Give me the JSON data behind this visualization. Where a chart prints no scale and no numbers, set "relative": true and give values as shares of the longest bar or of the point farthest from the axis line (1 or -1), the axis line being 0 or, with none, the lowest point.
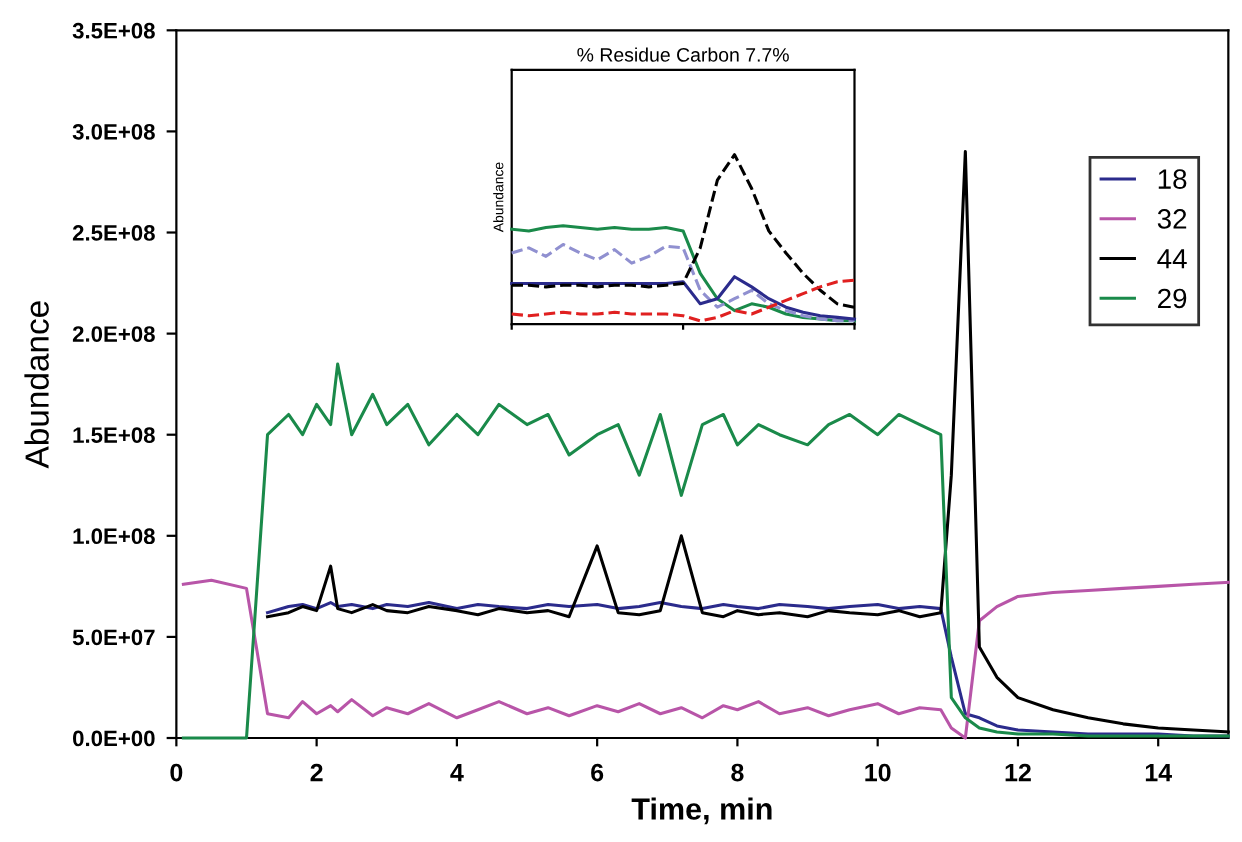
{
  "chart_data": [
    {
      "type": "line",
      "xlabel": "Time, min",
      "ylabel": "Abundance",
      "xlim": [
        0,
        15
      ],
      "xticks": [
        0,
        2,
        4,
        6,
        8,
        10,
        12,
        14
      ],
      "ylim": [
        0,
        350000000
      ],
      "yticks": [
        {
          "value": 0,
          "label": "0.0E+00"
        },
        {
          "value": 50000000,
          "label": "5.0E+07"
        },
        {
          "value": 100000000,
          "label": "1.0E+08"
        },
        {
          "value": 150000000,
          "label": "1.5E+08"
        },
        {
          "value": 200000000,
          "label": "2.0E+08"
        },
        {
          "value": 250000000,
          "label": "2.5E+08"
        },
        {
          "value": 300000000,
          "label": "3.0E+08"
        },
        {
          "value": 350000000,
          "label": "3.5E+08"
        }
      ],
      "grid": false,
      "legend": "top right",
      "marker": "none",
      "line_style": "solid",
      "x": [
        0.1,
        0.5,
        1.0,
        1.3,
        1.6,
        1.8,
        2.0,
        2.2,
        2.3,
        2.5,
        2.8,
        3.0,
        3.3,
        3.6,
        4.0,
        4.3,
        4.6,
        5.0,
        5.3,
        5.6,
        6.0,
        6.3,
        6.6,
        6.9,
        7.2,
        7.5,
        7.8,
        8.0,
        8.3,
        8.6,
        9.0,
        9.3,
        9.6,
        10.0,
        10.3,
        10.6,
        10.9,
        11.05,
        11.25,
        11.45,
        11.7,
        12.0,
        12.5,
        13.0,
        13.5,
        14.0,
        14.5,
        15.0
      ],
      "series": [
        {
          "name": "18",
          "color": "#2b2b8c",
          "values": [
            null,
            null,
            null,
            62000000.0,
            65000000.0,
            66000000.0,
            64000000.0,
            67000000.0,
            65000000.0,
            66000000.0,
            64000000.0,
            66000000.0,
            65000000.0,
            67000000.0,
            64000000.0,
            66000000.0,
            65000000.0,
            64000000.0,
            66000000.0,
            65000000.0,
            66000000.0,
            64000000.0,
            65000000.0,
            67000000.0,
            65000000.0,
            64000000.0,
            66000000.0,
            65000000.0,
            64000000.0,
            66000000.0,
            65000000.0,
            64000000.0,
            65000000.0,
            66000000.0,
            64000000.0,
            65000000.0,
            64000000.0,
            40000000.0,
            12000000.0,
            10000000.0,
            6000000.0,
            4000000.0,
            3000000.0,
            2000000.0,
            2000000.0,
            2000000.0,
            1000000.0,
            1000000.0
          ]
        },
        {
          "name": "32",
          "color": "#b855a8",
          "values": [
            76000000.0,
            78000000.0,
            74000000.0,
            12000000.0,
            10000000.0,
            18000000.0,
            12000000.0,
            16000000.0,
            13000000.0,
            19000000.0,
            11000000.0,
            15000000.0,
            12000000.0,
            17000000.0,
            10000000.0,
            14000000.0,
            18000000.0,
            12000000.0,
            15000000.0,
            11000000.0,
            16000000.0,
            13000000.0,
            17000000.0,
            12000000.0,
            15000000.0,
            10000000.0,
            16000000.0,
            14000000.0,
            18000000.0,
            12000000.0,
            15000000.0,
            11000000.0,
            14000000.0,
            17000000.0,
            12000000.0,
            15000000.0,
            14000000.0,
            5000000.0,
            0,
            58000000.0,
            65000000.0,
            70000000.0,
            72000000.0,
            73000000.0,
            74000000.0,
            75000000.0,
            76000000.0,
            77000000.0
          ]
        },
        {
          "name": "44",
          "color": "#000000",
          "values": [
            null,
            null,
            null,
            60000000.0,
            62000000.0,
            65000000.0,
            63000000.0,
            85000000.0,
            64000000.0,
            62000000.0,
            66000000.0,
            63000000.0,
            62000000.0,
            65000000.0,
            63000000.0,
            61000000.0,
            64000000.0,
            62000000.0,
            63000000.0,
            60000000.0,
            95000000.0,
            62000000.0,
            61000000.0,
            63000000.0,
            100000000.0,
            62000000.0,
            60000000.0,
            63000000.0,
            61000000.0,
            62000000.0,
            60000000.0,
            63000000.0,
            62000000.0,
            61000000.0,
            63000000.0,
            60000000.0,
            62000000.0,
            130000000.0,
            290000000.0,
            45000000.0,
            30000000.0,
            20000000.0,
            14000000.0,
            10000000.0,
            7000000.0,
            5000000.0,
            4000000.0,
            3000000.0
          ]
        },
        {
          "name": "29",
          "color": "#1a8a4a",
          "values": [
            0,
            0,
            0,
            150000000.0,
            160000000.0,
            150000000.0,
            165000000.0,
            155000000.0,
            185000000.0,
            150000000.0,
            170000000.0,
            155000000.0,
            165000000.0,
            145000000.0,
            160000000.0,
            150000000.0,
            165000000.0,
            155000000.0,
            160000000.0,
            140000000.0,
            150000000.0,
            155000000.0,
            130000000.0,
            160000000.0,
            120000000.0,
            155000000.0,
            160000000.0,
            145000000.0,
            155000000.0,
            150000000.0,
            145000000.0,
            155000000.0,
            160000000.0,
            150000000.0,
            160000000.0,
            155000000.0,
            150000000.0,
            20000000.0,
            10000000.0,
            5000000.0,
            3000000.0,
            2000000.0,
            2000000.0,
            1000000.0,
            1000000.0,
            1000000.0,
            1000000.0,
            1000000.0
          ]
        }
      ]
    },
    {
      "type": "line",
      "title": "% Residue Carbon 7.7%",
      "ylabel": "Abundance",
      "relative": true,
      "tick_labels": false,
      "grid": false,
      "marker": "none",
      "categories": [
        null,
        null,
        null,
        null,
        null,
        null,
        null,
        null,
        null,
        null,
        null,
        null,
        null,
        null,
        null,
        null,
        null,
        null,
        null,
        null,
        null
      ],
      "series": [
        {
          "color": "#1a8a4a",
          "line_style": "solid",
          "values": [
            0.56,
            0.55,
            0.57,
            0.58,
            0.57,
            0.56,
            0.57,
            0.56,
            0.56,
            0.57,
            0.55,
            0.3,
            0.15,
            0.08,
            0.12,
            0.1,
            0.06,
            0.04,
            0.03,
            0.02,
            0.02
          ]
        },
        {
          "color": "#9090d0",
          "line_style": "dashed",
          "values": [
            0.42,
            0.45,
            0.4,
            0.47,
            0.42,
            0.38,
            0.44,
            0.36,
            0.4,
            0.46,
            0.45,
            0.2,
            0.1,
            0.15,
            0.2,
            0.12,
            0.08,
            0.05,
            0.03,
            0.02,
            0.02
          ]
        },
        {
          "color": "#2b2b8c",
          "line_style": "solid",
          "values": [
            0.24,
            0.24,
            0.24,
            0.24,
            0.24,
            0.24,
            0.24,
            0.24,
            0.24,
            0.24,
            0.25,
            0.12,
            0.15,
            0.28,
            0.22,
            0.15,
            0.1,
            0.07,
            0.05,
            0.04,
            0.03
          ]
        },
        {
          "color": "#000000",
          "line_style": "dashed",
          "values": [
            0.23,
            0.23,
            0.22,
            0.23,
            0.23,
            0.22,
            0.23,
            0.23,
            0.22,
            0.23,
            0.24,
            0.45,
            0.85,
            1.0,
            0.8,
            0.55,
            0.42,
            0.3,
            0.2,
            0.12,
            0.1
          ]
        },
        {
          "color": "#e02020",
          "line_style": "dashed",
          "values": [
            0.06,
            0.05,
            0.06,
            0.07,
            0.06,
            0.06,
            0.07,
            0.06,
            0.06,
            0.06,
            0.05,
            0.02,
            0.04,
            0.08,
            0.06,
            0.1,
            0.14,
            0.18,
            0.22,
            0.25,
            0.26
          ]
        }
      ]
    }
  ]
}
